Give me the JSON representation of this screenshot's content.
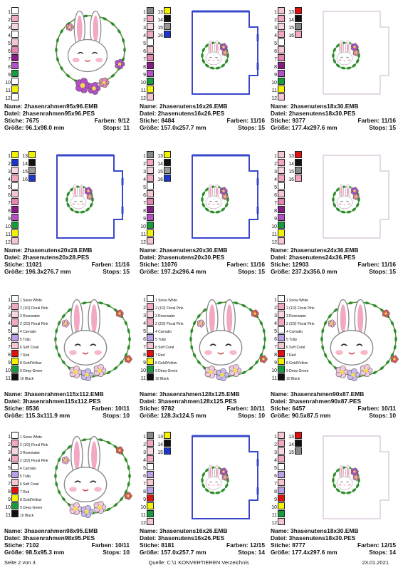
{
  "cells": [
    {
      "name": "2hasenrahmen95x96.EMB",
      "file": "2hasenrahmen95x96.PES",
      "stitches": "7675",
      "colors": "9/12",
      "size": "96.1x98.0 mm",
      "stops": "11",
      "art": "wreath-small",
      "palette": [
        {
          "n": "1",
          "c": "#ffffff"
        },
        {
          "n": "2",
          "c": "#f2a7c3"
        },
        {
          "n": "3",
          "c": "#f7d6dd"
        },
        {
          "n": "4",
          "c": "#ffffff"
        },
        {
          "n": "5",
          "c": "#f4c6cf"
        },
        {
          "n": "6",
          "c": "#e486b0"
        },
        {
          "n": "7",
          "c": "#8a1a8a"
        },
        {
          "n": "8",
          "c": "#b44fc8"
        },
        {
          "n": "9",
          "c": "#169c3c"
        },
        {
          "n": "10",
          "c": "#ffffff"
        },
        {
          "n": "11",
          "c": "#f2f200"
        },
        {
          "n": "12",
          "c": "#ffffff"
        }
      ]
    },
    {
      "name": "2hasenutens16x26.EMB",
      "file": "2hasenutens16x26.PES",
      "stitches": "8484",
      "colors": "11/16",
      "size": "157.0x257.7 mm",
      "stops": "15",
      "art": "pocket",
      "palette": [
        {
          "n": "1",
          "c": "#888888",
          "n2": "13",
          "c2": "#f2f200"
        },
        {
          "n": "2",
          "c": "#f2a7c3",
          "n2": "14",
          "c2": "#111111"
        },
        {
          "n": "3",
          "c": "#f7d6dd",
          "n2": "15",
          "c2": "#999999"
        },
        {
          "n": "4",
          "c": "#f2a7c3",
          "n2": "16",
          "c2": "#1d36c8"
        },
        {
          "n": "5",
          "c": "#ffffff"
        },
        {
          "n": "6",
          "c": "#f4c6cf"
        },
        {
          "n": "7",
          "c": "#e486b0"
        },
        {
          "n": "8",
          "c": "#8a1a8a"
        },
        {
          "n": "9",
          "c": "#b44fc8"
        },
        {
          "n": "10",
          "c": "#169c3c"
        },
        {
          "n": "11",
          "c": "#f2f200"
        },
        {
          "n": "12",
          "c": "#f4c6cf"
        }
      ]
    },
    {
      "name": "2hasenutens18x30.EMB",
      "file": "2hasenutens18x30.PES",
      "stitches": "9377",
      "colors": "11/16",
      "size": "177.4x297.6 mm",
      "stops": "15",
      "art": "pocket-faint",
      "palette": [
        {
          "n": "1",
          "c": "#f4c6cf",
          "n2": "13",
          "c2": "#e01010"
        },
        {
          "n": "2",
          "c": "#f2a7c3",
          "n2": "14",
          "c2": "#111111"
        },
        {
          "n": "3",
          "c": "#f7d6dd",
          "n2": "15",
          "c2": "#888888"
        },
        {
          "n": "4",
          "c": "#f2a7c3",
          "n2": "16",
          "c2": "#f2a7c3"
        },
        {
          "n": "5",
          "c": "#ffffff"
        },
        {
          "n": "6",
          "c": "#f4c6cf"
        },
        {
          "n": "7",
          "c": "#e486b0"
        },
        {
          "n": "8",
          "c": "#8a1a8a"
        },
        {
          "n": "9",
          "c": "#b44fc8"
        },
        {
          "n": "10",
          "c": "#169c3c"
        },
        {
          "n": "11",
          "c": "#f2f200"
        },
        {
          "n": "12",
          "c": "#f4c6cf"
        }
      ]
    },
    {
      "name": "2hasenutens20x28.EMB",
      "file": "2hasenutens20x28.PES",
      "stitches": "11021",
      "colors": "11/16",
      "size": "196.3x276.7 mm",
      "stops": "15",
      "art": "pocket",
      "palette": [
        {
          "n": "1",
          "c": "#f2f200",
          "n2": "13",
          "c2": "#f2f200"
        },
        {
          "n": "2",
          "c": "#1d36c8",
          "n2": "14",
          "c2": "#111111"
        },
        {
          "n": "3",
          "c": "#f7d6dd",
          "n2": "15",
          "c2": "#999999"
        },
        {
          "n": "4",
          "c": "#f2a7c3",
          "n2": "16",
          "c2": "#1d36c8"
        },
        {
          "n": "5",
          "c": "#ffffff"
        },
        {
          "n": "6",
          "c": "#f4c6cf"
        },
        {
          "n": "7",
          "c": "#e486b0"
        },
        {
          "n": "8",
          "c": "#8a1a8a"
        },
        {
          "n": "9",
          "c": "#b44fc8"
        },
        {
          "n": "10",
          "c": "#169c3c"
        },
        {
          "n": "11",
          "c": "#f2f200"
        },
        {
          "n": "12",
          "c": "#f4c6cf"
        }
      ]
    },
    {
      "name": "2hasenutens20x30.EMB",
      "file": "2hasenutens20x30.PES",
      "stitches": "11076",
      "colors": "11/16",
      "size": "197.2x296.4 mm",
      "stops": "15",
      "art": "pocket",
      "palette": [
        {
          "n": "1",
          "c": "#888888",
          "n2": "13",
          "c2": "#f2f200"
        },
        {
          "n": "2",
          "c": "#f2a7c3",
          "n2": "14",
          "c2": "#111111"
        },
        {
          "n": "3",
          "c": "#f7d6dd",
          "n2": "15",
          "c2": "#999999"
        },
        {
          "n": "4",
          "c": "#f2a7c3",
          "n2": "16",
          "c2": "#1d36c8"
        },
        {
          "n": "5",
          "c": "#ffffff"
        },
        {
          "n": "6",
          "c": "#f4c6cf"
        },
        {
          "n": "7",
          "c": "#e486b0"
        },
        {
          "n": "8",
          "c": "#8a1a8a"
        },
        {
          "n": "9",
          "c": "#b44fc8"
        },
        {
          "n": "10",
          "c": "#169c3c"
        },
        {
          "n": "11",
          "c": "#f2f200"
        },
        {
          "n": "12",
          "c": "#f4c6cf"
        }
      ]
    },
    {
      "name": "2hasenutens24x36.EMB",
      "file": "2hasenutens24x36.PES",
      "stitches": "12903",
      "colors": "11/16",
      "size": "237.2x356.0 mm",
      "stops": "15",
      "art": "pocket-faint",
      "palette": [
        {
          "n": "1",
          "c": "#f4c6cf",
          "n2": "13",
          "c2": "#e01010"
        },
        {
          "n": "2",
          "c": "#f2a7c3",
          "n2": "14",
          "c2": "#111111"
        },
        {
          "n": "3",
          "c": "#f7d6dd",
          "n2": "15",
          "c2": "#888888"
        },
        {
          "n": "4",
          "c": "#f2a7c3",
          "n2": "16",
          "c2": "#f2a7c3"
        },
        {
          "n": "5",
          "c": "#ffffff"
        },
        {
          "n": "6",
          "c": "#f4c6cf"
        },
        {
          "n": "7",
          "c": "#e486b0"
        },
        {
          "n": "8",
          "c": "#8a1a8a"
        },
        {
          "n": "9",
          "c": "#b44fc8"
        },
        {
          "n": "10",
          "c": "#169c3c"
        },
        {
          "n": "11",
          "c": "#f2f200"
        },
        {
          "n": "12",
          "c": "#f4c6cf"
        }
      ]
    },
    {
      "name": "3hasenrahmen115x112.EMB",
      "file": "3hasenrahmen115x112.PES",
      "stitches": "8536",
      "colors": "10/11",
      "size": "115.3x111.9 mm",
      "stops": "10",
      "art": "wreath-large",
      "palette": [
        {
          "n": "1",
          "c": "#ffffff",
          "t": "1 Snow White"
        },
        {
          "n": "2",
          "c": "#f2a7c3",
          "t": "2 (1/2) Floral Pink"
        },
        {
          "n": "3",
          "c": "#f7d6dd",
          "t": "3 Rosewater"
        },
        {
          "n": "4",
          "c": "#f2a7c3",
          "t": "2 (2/2) Floral Pink"
        },
        {
          "n": "5",
          "c": "#ffffff",
          "t": "4 Carnatio"
        },
        {
          "n": "6",
          "c": "#b9a0e8",
          "t": "5 Tulip"
        },
        {
          "n": "7",
          "c": "#f4c6cf",
          "t": "6 Soft Coral"
        },
        {
          "n": "8",
          "c": "#e01010",
          "t": "7 Red"
        },
        {
          "n": "9",
          "c": "#f2f200",
          "t": "8 Gold/Yellow"
        },
        {
          "n": "10",
          "c": "#169c3c",
          "t": "9 Deep Green"
        },
        {
          "n": "11",
          "c": "#111111",
          "t": "10 Black"
        }
      ]
    },
    {
      "name": "3hasenrahmen128x125.EMB",
      "file": "3hasenrahmen128x125.PES",
      "stitches": "9782",
      "colors": "10/11",
      "size": "128.3x124.5 mm",
      "stops": "10",
      "art": "wreath-large",
      "palette": [
        {
          "n": "1",
          "c": "#ffffff",
          "t": "1 Snow White"
        },
        {
          "n": "2",
          "c": "#f2a7c3",
          "t": "2 (1/2) Floral Pink"
        },
        {
          "n": "3",
          "c": "#f7d6dd",
          "t": "3 Rosewater"
        },
        {
          "n": "4",
          "c": "#f2a7c3",
          "t": "2 (2/2) Floral Pink"
        },
        {
          "n": "5",
          "c": "#ffffff",
          "t": "4 Carnatio"
        },
        {
          "n": "6",
          "c": "#b9a0e8",
          "t": "5 Tulip"
        },
        {
          "n": "7",
          "c": "#f4c6cf",
          "t": "6 Soft Coral"
        },
        {
          "n": "8",
          "c": "#e01010",
          "t": "7 Red"
        },
        {
          "n": "9",
          "c": "#f2f200",
          "t": "8 Gold/Yellow"
        },
        {
          "n": "10",
          "c": "#169c3c",
          "t": "9 Deep Green"
        },
        {
          "n": "11",
          "c": "#111111",
          "t": "10 Black"
        }
      ]
    },
    {
      "name": "3hasenrahmen90x87.EMB",
      "file": "3hasenrahmen90x87.PES",
      "stitches": "6457",
      "colors": "10/11",
      "size": "90.5x87.5 mm",
      "stops": "10",
      "art": "wreath-large",
      "palette": [
        {
          "n": "1",
          "c": "#ffffff",
          "t": "1 Snow White"
        },
        {
          "n": "2",
          "c": "#f2a7c3",
          "t": "2 (1/2) Floral Pink"
        },
        {
          "n": "3",
          "c": "#f7d6dd",
          "t": "3 Rosewater"
        },
        {
          "n": "4",
          "c": "#f2a7c3",
          "t": "2 (2/2) Floral Pink"
        },
        {
          "n": "5",
          "c": "#ffffff",
          "t": "4 Carnatio"
        },
        {
          "n": "6",
          "c": "#b9a0e8",
          "t": "5 Tulip"
        },
        {
          "n": "7",
          "c": "#f4c6cf",
          "t": "6 Soft Coral"
        },
        {
          "n": "8",
          "c": "#e01010",
          "t": "7 Red"
        },
        {
          "n": "9",
          "c": "#f2f200",
          "t": "8 Gold/Yellow"
        },
        {
          "n": "10",
          "c": "#169c3c",
          "t": "9 Deep Green"
        },
        {
          "n": "11",
          "c": "#111111",
          "t": "10 Black"
        }
      ]
    },
    {
      "name": "3hasenrahmen98x95.EMB",
      "file": "3hasenrahmen98x95.PES",
      "stitches": "7102",
      "colors": "10/11",
      "size": "98.5x95.3 mm",
      "stops": "10",
      "art": "wreath-large",
      "palette": [
        {
          "n": "1",
          "c": "#ffffff",
          "t": "1 Snow White"
        },
        {
          "n": "2",
          "c": "#f2a7c3",
          "t": "2 (1/2) Floral Pink"
        },
        {
          "n": "3",
          "c": "#f7d6dd",
          "t": "3 Rosewater"
        },
        {
          "n": "4",
          "c": "#f2a7c3",
          "t": "2 (2/2) Floral Pink"
        },
        {
          "n": "5",
          "c": "#ffffff",
          "t": "4 Carnatio"
        },
        {
          "n": "6",
          "c": "#b9a0e8",
          "t": "5 Tulip"
        },
        {
          "n": "7",
          "c": "#f4c6cf",
          "t": "6 Soft Coral"
        },
        {
          "n": "8",
          "c": "#e01010",
          "t": "7 Red"
        },
        {
          "n": "9",
          "c": "#f2f200",
          "t": "8 Gold/Yellow"
        },
        {
          "n": "10",
          "c": "#169c3c",
          "t": "9 Deep Green"
        },
        {
          "n": "11",
          "c": "#111111",
          "t": "10 Black"
        }
      ]
    },
    {
      "name": "3hasenutens16x26.EMB",
      "file": "3hasenutens16x26.PES",
      "stitches": "8181",
      "colors": "12/15",
      "size": "157.0x257.7 mm",
      "stops": "14",
      "art": "pocket-bunny",
      "palette": [
        {
          "n": "1",
          "c": "#888888",
          "n2": "13",
          "c2": "#f2f200"
        },
        {
          "n": "2",
          "c": "#f2a7c3",
          "n2": "14",
          "c2": "#111111"
        },
        {
          "n": "3",
          "c": "#f7d6dd",
          "n2": "15",
          "c2": "#1d36c8"
        },
        {
          "n": "4",
          "c": "#f2a7c3"
        },
        {
          "n": "5",
          "c": "#ffffff"
        },
        {
          "n": "6",
          "c": "#b9a0e8"
        },
        {
          "n": "7",
          "c": "#f4c6cf"
        },
        {
          "n": "8",
          "c": "#b9a0e8"
        },
        {
          "n": "9",
          "c": "#e01010"
        },
        {
          "n": "10",
          "c": "#f2f200"
        },
        {
          "n": "11",
          "c": "#169c3c"
        },
        {
          "n": "12",
          "c": "#f4c6cf"
        }
      ]
    },
    {
      "name": "3hasenutens18x30.EMB",
      "file": "3hasenutens18x30.PES",
      "stitches": "8777",
      "colors": "12/15",
      "size": "177.4x297.6 mm",
      "stops": "14",
      "art": "pocket-faint-bunny",
      "palette": [
        {
          "n": "1",
          "c": "#f4c6cf",
          "n2": "13",
          "c2": "#e01010"
        },
        {
          "n": "2",
          "c": "#f2a7c3",
          "n2": "14",
          "c2": "#111111"
        },
        {
          "n": "3",
          "c": "#f7d6dd",
          "n2": "15",
          "c2": "#888888"
        },
        {
          "n": "4",
          "c": "#f2a7c3"
        },
        {
          "n": "5",
          "c": "#ffffff"
        },
        {
          "n": "6",
          "c": "#b9a0e8"
        },
        {
          "n": "7",
          "c": "#f4c6cf"
        },
        {
          "n": "8",
          "c": "#b9a0e8"
        },
        {
          "n": "9",
          "c": "#e01010"
        },
        {
          "n": "10",
          "c": "#f2f200"
        },
        {
          "n": "11",
          "c": "#169c3c"
        },
        {
          "n": "12",
          "c": "#f4c6cf"
        }
      ]
    }
  ],
  "labels": {
    "name": "Name:",
    "file": "Datei:",
    "stitches": "Stiche:",
    "colors": "Farben:",
    "size": "Größe:",
    "stops": "Stops:"
  },
  "footer": {
    "page": "Seite 2 von 3",
    "source": "Quelle: C:\\1 KONVERTIEREN Verzeichnis",
    "date": "23.01.2021"
  }
}
